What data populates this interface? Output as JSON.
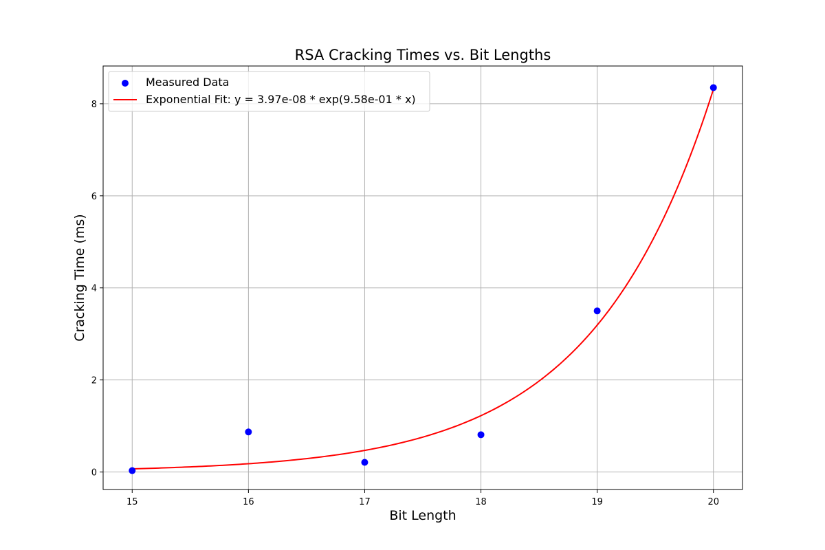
{
  "chart_data": {
    "type": "scatter",
    "title": "RSA Cracking Times vs. Bit Lengths",
    "xlabel": "Bit Length",
    "ylabel": "Cracking Time (ms)",
    "xlim": [
      14.75,
      20.25
    ],
    "ylim": [
      -0.38,
      8.82
    ],
    "xticks": [
      15,
      16,
      17,
      18,
      19,
      20
    ],
    "yticks": [
      0,
      2,
      4,
      6,
      8
    ],
    "grid": true,
    "legend_position": "top-left",
    "series": [
      {
        "name": "Measured Data",
        "kind": "scatter",
        "color": "#0000ff",
        "x": [
          15,
          16,
          17,
          18,
          19,
          20
        ],
        "y": [
          0.03,
          0.87,
          0.21,
          0.81,
          3.5,
          8.35
        ]
      },
      {
        "name": "Exponential Fit: y = 3.97e-08 * exp(9.58e-01 * x)",
        "kind": "line",
        "color": "#ff0000",
        "fit": {
          "a": 3.97e-08,
          "b": 0.958,
          "x_range": [
            15,
            20
          ]
        }
      }
    ]
  }
}
